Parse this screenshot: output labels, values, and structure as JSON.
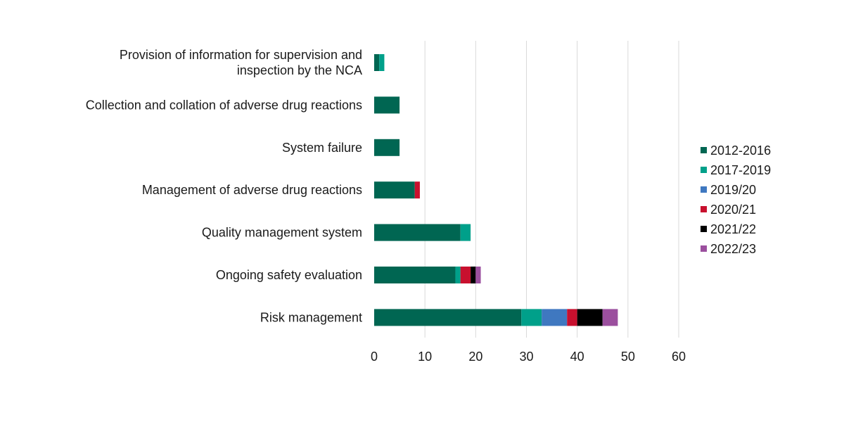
{
  "chart_data": {
    "type": "bar",
    "orientation": "horizontal",
    "stacked": true,
    "title": "",
    "xlabel": "",
    "ylabel": "",
    "xlim": [
      0,
      60
    ],
    "xticks": [
      "0",
      "10",
      "20",
      "30",
      "40",
      "50",
      "60"
    ],
    "grid": "vertical",
    "legend_position": "right",
    "categories": [
      [
        "Provision of information for supervision and",
        "inspection by the NCA"
      ],
      [
        "Collection and collation of adverse drug reactions"
      ],
      [
        "System failure"
      ],
      [
        "Management of adverse drug reactions"
      ],
      [
        "Quality management system"
      ],
      [
        "Ongoing safety evaluation"
      ],
      [
        "Risk management"
      ]
    ],
    "series": [
      {
        "name": "2012-2016",
        "color": "#006652",
        "values": [
          1,
          5,
          5,
          8,
          17,
          16,
          29
        ]
      },
      {
        "name": "2017-2019",
        "color": "#00a08a",
        "values": [
          1,
          0,
          0,
          0,
          2,
          1,
          4
        ]
      },
      {
        "name": "2019/20",
        "color": "#3f78c0",
        "values": [
          0,
          0,
          0,
          0,
          0,
          0,
          5
        ]
      },
      {
        "name": "2020/21",
        "color": "#c8102e",
        "values": [
          0,
          0,
          0,
          1,
          0,
          2,
          2
        ]
      },
      {
        "name": "2021/22",
        "color": "#000000",
        "values": [
          0,
          0,
          0,
          0,
          0,
          1,
          5
        ]
      },
      {
        "name": "2022/23",
        "color": "#9b4f9e",
        "values": [
          0,
          0,
          0,
          0,
          0,
          1,
          3
        ]
      }
    ]
  }
}
